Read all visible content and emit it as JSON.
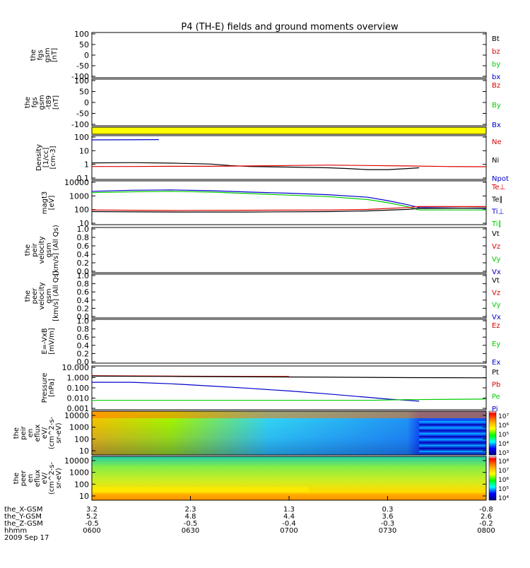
{
  "title": "P4 (TH-E) fields and ground moments overview",
  "colors": {
    "black": "#000000",
    "red": "#dd0000",
    "green": "#00cc00",
    "blue": "#0000cc",
    "yellow": "#ffff00",
    "axis": "#000000"
  },
  "chart_data": [
    {
      "type": "line",
      "panel": "fgs-gsm",
      "ylabel": [
        "the",
        "fgs",
        "gsm",
        "[nT]"
      ],
      "yticks": [
        "100",
        "50",
        "0",
        "-50",
        "-100"
      ],
      "ylim": [
        -100,
        100
      ],
      "legend": [
        {
          "label": "Bt",
          "color": "black"
        },
        {
          "label": "bz",
          "color": "red"
        },
        {
          "label": "by",
          "color": "green"
        },
        {
          "label": "bx",
          "color": "blue"
        }
      ],
      "series": []
    },
    {
      "type": "line",
      "panel": "fgs-gsm-t89",
      "ylabel": [
        "the",
        "fgs",
        "gsm",
        "-t89",
        "[nT]"
      ],
      "yticks": [
        "100",
        "50",
        "0",
        "-50",
        "-100"
      ],
      "ylim": [
        -100,
        100
      ],
      "legend": [
        {
          "label": "Bz",
          "color": "red"
        },
        {
          "label": "By",
          "color": "green"
        },
        {
          "label": "Bx",
          "color": "blue"
        }
      ],
      "series": []
    },
    {
      "type": "bar",
      "panel": "mode-bar",
      "color": "yellow"
    },
    {
      "type": "line",
      "panel": "density",
      "log": true,
      "ylabel": [
        "Density",
        "[1/cc]",
        "[cm-3]"
      ],
      "yticks": [
        "100",
        "10",
        "1",
        "0.1"
      ],
      "ylim": [
        0.03,
        300
      ],
      "legend": [
        {
          "label": "Ne",
          "color": "red"
        },
        {
          "label": "Ni",
          "color": "black"
        },
        {
          "label": "Npot",
          "color": "blue"
        }
      ],
      "series": [
        {
          "color": "blue",
          "x": [
            0.0,
            0.17
          ],
          "y": [
            160,
            170
          ]
        },
        {
          "color": "black",
          "x": [
            0.0,
            0.1,
            0.2,
            0.3,
            0.35,
            0.4,
            0.5,
            0.6,
            0.65,
            0.7,
            0.75,
            0.8,
            0.83
          ],
          "y": [
            0.9,
            0.95,
            0.85,
            0.7,
            0.5,
            0.4,
            0.35,
            0.3,
            0.25,
            0.2,
            0.2,
            0.25,
            0.3
          ]
        },
        {
          "color": "red",
          "x": [
            0.0,
            0.1,
            0.2,
            0.3,
            0.4,
            0.5,
            0.6,
            0.7,
            0.8,
            0.9,
            1.0
          ],
          "y": [
            0.4,
            0.4,
            0.42,
            0.42,
            0.45,
            0.5,
            0.55,
            0.5,
            0.45,
            0.4,
            0.38
          ]
        }
      ]
    },
    {
      "type": "line",
      "panel": "temperature",
      "log": true,
      "ylabel": [
        "magt3",
        "[eV]"
      ],
      "yticks": [
        "10000",
        "1000",
        "100",
        "10"
      ],
      "ylim": [
        10,
        12000
      ],
      "legend": [
        {
          "label": "Te⊥",
          "color": "red"
        },
        {
          "label": "Te∥",
          "color": "black"
        },
        {
          "label": "Ti⊥",
          "color": "blue"
        },
        {
          "label": "Ti∥",
          "color": "green"
        }
      ],
      "series": [
        {
          "color": "blue",
          "x": [
            0.0,
            0.1,
            0.2,
            0.3,
            0.4,
            0.5,
            0.6,
            0.7,
            0.75,
            0.8,
            0.83,
            1.0
          ],
          "y": [
            2500,
            3000,
            3200,
            2800,
            2200,
            1800,
            1400,
            900,
            500,
            250,
            150,
            130
          ]
        },
        {
          "color": "green",
          "x": [
            0.0,
            0.1,
            0.2,
            0.3,
            0.4,
            0.5,
            0.6,
            0.7,
            0.75,
            0.8,
            0.83,
            1.0
          ],
          "y": [
            2000,
            2300,
            2500,
            2200,
            1700,
            1300,
            1000,
            600,
            350,
            180,
            100,
            100
          ]
        },
        {
          "color": "red",
          "x": [
            0.0,
            0.2,
            0.4,
            0.6,
            0.7,
            0.8,
            0.83,
            1.0
          ],
          "y": [
            100,
            90,
            95,
            100,
            110,
            150,
            180,
            180
          ]
        },
        {
          "color": "black",
          "x": [
            0.0,
            0.2,
            0.4,
            0.6,
            0.7,
            0.8,
            0.83,
            1.0
          ],
          "y": [
            75,
            70,
            70,
            75,
            85,
            110,
            130,
            140
          ]
        }
      ]
    },
    {
      "type": "line",
      "panel": "peir-velocity",
      "ylabel": [
        "the",
        "peir",
        "velocity",
        "gsm",
        "[km/s] (All Qs)"
      ],
      "yticks": [
        "1.0",
        "0.8",
        "0.6",
        "0.4",
        "0.2",
        "0.0"
      ],
      "ylim": [
        0,
        1
      ],
      "legend": [
        {
          "label": "Vt",
          "color": "black"
        },
        {
          "label": "Vz",
          "color": "red"
        },
        {
          "label": "Vy",
          "color": "green"
        },
        {
          "label": "Vx",
          "color": "blue"
        }
      ],
      "series": []
    },
    {
      "type": "line",
      "panel": "peer-velocity",
      "ylabel": [
        "the",
        "peer",
        "velocity",
        "gsm",
        "[km/s] (All Qs)"
      ],
      "yticks": [
        "1.0",
        "0.8",
        "0.6",
        "0.4",
        "0.2",
        "0.0"
      ],
      "ylim": [
        0,
        1
      ],
      "legend": [
        {
          "label": "Vt",
          "color": "black"
        },
        {
          "label": "Vz",
          "color": "red"
        },
        {
          "label": "Vy",
          "color": "green"
        },
        {
          "label": "Vx",
          "color": "blue"
        }
      ],
      "series": []
    },
    {
      "type": "line",
      "panel": "efield",
      "ylabel": [
        "E=-VxB",
        "[mV/m]"
      ],
      "yticks": [
        "1.0",
        "0.8",
        "0.6",
        "0.4",
        "0.2",
        "0.0"
      ],
      "ylim": [
        0,
        1
      ],
      "legend": [
        {
          "label": "Ez",
          "color": "red"
        },
        {
          "label": "Ey",
          "color": "green"
        },
        {
          "label": "Ex",
          "color": "blue"
        }
      ],
      "series": []
    },
    {
      "type": "line",
      "panel": "pressure",
      "log": true,
      "ylabel": [
        "Pressure",
        "[nPa]"
      ],
      "yticks": [
        "10.000",
        "1.000",
        "0.100",
        "0.010",
        "0.001"
      ],
      "ylim": [
        0.001,
        10
      ],
      "legend": [
        {
          "label": "Pt",
          "color": "black"
        },
        {
          "label": "Pb",
          "color": "red"
        },
        {
          "label": "Pe",
          "color": "green"
        },
        {
          "label": "Pi",
          "color": "blue"
        }
      ],
      "series": [
        {
          "color": "red",
          "x": [
            0.0,
            0.2,
            0.4,
            0.5
          ],
          "y": [
            1.5,
            1.4,
            1.3,
            1.3
          ]
        },
        {
          "color": "black",
          "x": [
            0.0,
            0.2,
            0.4,
            0.6,
            0.8,
            1.0
          ],
          "y": [
            1.4,
            1.3,
            1.2,
            1.1,
            1.0,
            0.95
          ]
        },
        {
          "color": "blue",
          "x": [
            0.0,
            0.1,
            0.2,
            0.3,
            0.4,
            0.5,
            0.6,
            0.7,
            0.75,
            0.8,
            0.83
          ],
          "y": [
            0.35,
            0.35,
            0.25,
            0.15,
            0.09,
            0.05,
            0.025,
            0.012,
            0.008,
            0.006,
            0.005
          ]
        },
        {
          "color": "green",
          "x": [
            0.0,
            0.2,
            0.4,
            0.6,
            0.7,
            0.8,
            1.0
          ],
          "y": [
            0.006,
            0.006,
            0.006,
            0.006,
            0.006,
            0.007,
            0.008
          ]
        }
      ]
    },
    {
      "type": "heatmap",
      "panel": "peir-eflux",
      "ylabel": [
        "the",
        "peir",
        "en",
        "eflux",
        "eV/",
        "(cm^2-s-",
        "sr-eV)"
      ],
      "yticks": [
        "10000",
        "1000",
        "100",
        "10"
      ],
      "colorbar": [
        "10⁷",
        "10⁶",
        "10⁵",
        "10⁴",
        "10³"
      ]
    },
    {
      "type": "heatmap",
      "panel": "peer-eflux",
      "ylabel": [
        "the",
        "peer",
        "en",
        "eflux",
        "eV/",
        "(cm^2-s-",
        "sr-eV)"
      ],
      "yticks": [
        "10000",
        "1000",
        "100",
        "10"
      ],
      "colorbar": [
        "10⁸",
        "10⁷",
        "10⁶",
        "10⁵",
        "10⁴"
      ]
    }
  ],
  "xaxis": {
    "rows": [
      {
        "label": "the_X-GSM",
        "values": [
          "3.2",
          "2.3",
          "1.3",
          "0.3",
          "-0.8"
        ]
      },
      {
        "label": "the_Y-GSM",
        "values": [
          "5.2",
          "4.8",
          "4.4",
          "3.6",
          "2.6"
        ]
      },
      {
        "label": "the_Z-GSM",
        "values": [
          "-0.5",
          "-0.5",
          "-0.4",
          "-0.3",
          "-0.2"
        ]
      },
      {
        "label": "hhmm",
        "values": [
          "0600",
          "0630",
          "0700",
          "0730",
          "0800"
        ]
      }
    ],
    "date": "2009 Sep 17"
  }
}
